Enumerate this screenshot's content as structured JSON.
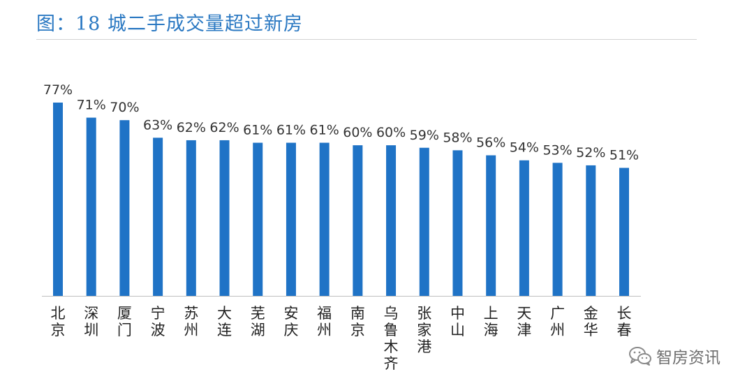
{
  "header": {
    "title": "图：18 城二手成交量超过新房"
  },
  "watermark": {
    "label": "智房资讯",
    "icon": "wechat-icon"
  },
  "chart_data": {
    "type": "bar",
    "categories": [
      "北京",
      "深圳",
      "厦门",
      "宁波",
      "苏州",
      "大连",
      "芜湖",
      "安庆",
      "福州",
      "南京",
      "乌鲁木齐",
      "张家港",
      "中山",
      "上海",
      "天津",
      "广州",
      "金华",
      "长春"
    ],
    "values": [
      77,
      71,
      70,
      63,
      62,
      62,
      61,
      61,
      61,
      60,
      60,
      59,
      58,
      56,
      54,
      53,
      52,
      51
    ],
    "value_labels": [
      "77%",
      "71%",
      "70%",
      "63%",
      "62%",
      "62%",
      "61%",
      "61%",
      "61%",
      "60%",
      "60%",
      "59%",
      "58%",
      "56%",
      "54%",
      "53%",
      "52%",
      "51%"
    ],
    "unit": "%",
    "ylim": [
      0,
      77
    ],
    "bar_color": "#1f73c6",
    "grid": false,
    "legend": "none",
    "xlabel": "",
    "ylabel": ""
  }
}
